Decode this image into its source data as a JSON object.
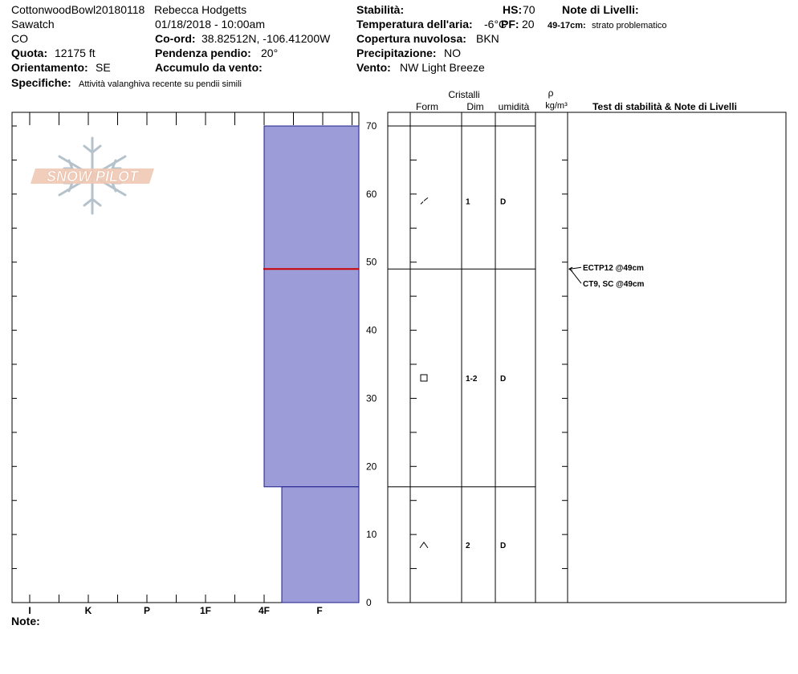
{
  "header": {
    "site": "CottonwoodBowl20180118",
    "observer": "Rebecca Hodgetts",
    "range": "Sawatch",
    "datetime": "01/18/2018 - 10:00am",
    "state": "CO",
    "coord_label": "Co-ord:",
    "coord_value": "38.82512N, -106.41200W",
    "elev_label": "Quota:",
    "elev_value": "12175 ft",
    "slope_label": "Pendenza pendio:",
    "slope_value": "20°",
    "aspect_label": "Orientamento:",
    "aspect_value": "SE",
    "wind_load_label": "Accumulo da vento:",
    "wind_load_value": "",
    "specifics_label": "Specifiche:",
    "specifics_value": "Attività valanghiva recente su pendii simili",
    "stability_label": "Stabilità:",
    "stability_value": "",
    "hs_label": "HS:",
    "hs_value": "70",
    "air_temp_label": "Temperatura dell'aria:",
    "air_temp_value": "-6°C",
    "pf_label": "PF:",
    "pf_value": "20",
    "cloud_label": "Copertura nuvolosa:",
    "cloud_value": "BKN",
    "precip_label": "Precipitazione:",
    "precip_value": "NO",
    "wind_label": "Vento:",
    "wind_value": "NW Light Breeze",
    "layer_notes_label": "Note di Livelli:",
    "layer_note_range": "49-17cm:",
    "layer_note_text": "strato problematico",
    "notes_label": "Note:"
  },
  "logo": {
    "text": "SNOW PILOT"
  },
  "colors": {
    "layer_fill": "#9c9cd8",
    "layer_stroke": "#1e1e8c",
    "weak_layer": "#cc0000"
  },
  "table_headers": {
    "crystals": "Cristalli",
    "form": "Form",
    "size": "Dim",
    "moisture": "umidità",
    "density_symbol": "ρ",
    "density_unit": "kg/m³",
    "tests": "Test di stabilità & Note di Livelli"
  },
  "chart_data": {
    "type": "bar",
    "x_hardness_ticks": [
      "I",
      "K",
      "P",
      "1F",
      "4F",
      "F"
    ],
    "y_ticks": [
      0,
      10,
      20,
      30,
      40,
      50,
      60,
      70
    ],
    "ylim": [
      0,
      70
    ],
    "layers": [
      {
        "top": 70,
        "bottom": 17,
        "hardness": "4F",
        "form_icon": "decomposing-fragments-icon",
        "size": "1",
        "moisture": "D"
      },
      {
        "top": 17,
        "bottom": 0,
        "hardness": "4F-",
        "form_icon": "depth-hoar-icon",
        "size": "2",
        "moisture": "D"
      }
    ],
    "crystal_rows": [
      {
        "height": 59,
        "form_icon": "decomposing-fragments-icon",
        "size": "1",
        "moisture": "D"
      },
      {
        "height": 33,
        "form_icon": "faceted-crystals-icon",
        "size": "1-2",
        "moisture": "D"
      },
      {
        "height": 8.5,
        "form_icon": "depth-hoar-icon",
        "size": "2",
        "moisture": "D"
      }
    ],
    "table_boundaries": [
      70,
      49,
      17
    ],
    "weak_layer_height": 49,
    "tests": [
      {
        "label": "ECTP12 @49cm",
        "height": 49
      },
      {
        "label": "CT9, SC @49cm",
        "height": 49
      }
    ]
  }
}
